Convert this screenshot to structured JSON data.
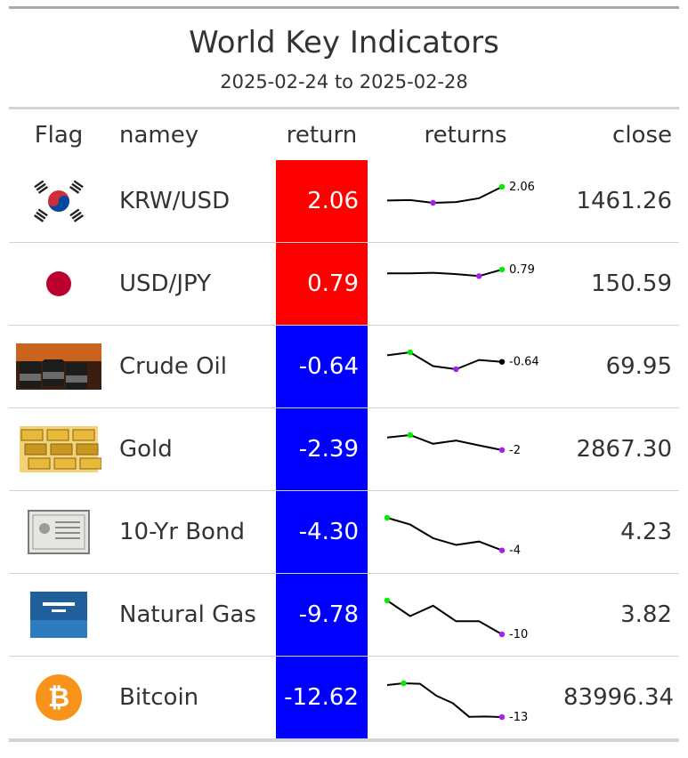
{
  "header": {
    "title": "World Key Indicators",
    "subtitle": "2025-02-24 to 2025-02-28"
  },
  "columns": {
    "flag": "Flag",
    "name": "namey",
    "return": "return",
    "returns": "returns",
    "close": "close"
  },
  "colors": {
    "positive": "#ff0000",
    "negative": "#0000ff",
    "spark_line": "#000000",
    "spark_min": "#a020f0",
    "spark_max": "#00ee00"
  },
  "rows": [
    {
      "icon": "south-korea-flag-icon",
      "name": "KRW/USD",
      "ret": "2.06",
      "close": "1461.26",
      "end_label": "2.06",
      "spark": [
        0.3,
        0.35,
        0.0,
        0.1,
        0.6,
        2.06
      ],
      "min_i": 2,
      "max_i": 5,
      "last": "max"
    },
    {
      "icon": "japan-flag-icon",
      "name": "USD/JPY",
      "ret": "0.79",
      "close": "150.59",
      "end_label": "0.79",
      "spark": [
        0.5,
        0.5,
        0.55,
        0.45,
        0.3,
        0.79
      ],
      "min_i": 4,
      "max_i": 5,
      "last": "max"
    },
    {
      "icon": "crude-oil-barrels-icon",
      "name": "Crude Oil",
      "ret": "-0.64",
      "close": "69.95",
      "end_label": "-0.64",
      "spark": [
        0.2,
        0.6,
        -1.2,
        -1.6,
        -0.4,
        -0.64
      ],
      "min_i": 3,
      "max_i": 1,
      "last": "plain"
    },
    {
      "icon": "gold-bars-icon",
      "name": "Gold",
      "ret": "-2.39",
      "close": "2867.30",
      "end_label": "-2",
      "spark": [
        -0.8,
        -0.5,
        -1.6,
        -1.2,
        -1.8,
        -2.39
      ],
      "min_i": 5,
      "max_i": 1,
      "last": "min"
    },
    {
      "icon": "bond-certificate-icon",
      "name": "10-Yr Bond",
      "ret": "-4.30",
      "close": "4.23",
      "end_label": "-4",
      "spark": [
        0.5,
        -0.5,
        -2.5,
        -3.5,
        -3.0,
        -4.3
      ],
      "min_i": 5,
      "max_i": 0,
      "last": "min"
    },
    {
      "icon": "natural-gas-icon",
      "name": "Natural Gas",
      "ret": "-9.78",
      "close": "3.82",
      "end_label": "-10",
      "spark": [
        0.0,
        -4.5,
        -1.5,
        -6.0,
        -6.0,
        -9.78
      ],
      "min_i": 5,
      "max_i": 0,
      "last": "min"
    },
    {
      "icon": "bitcoin-icon",
      "name": "Bitcoin",
      "ret": "-12.62",
      "close": "83996.34",
      "end_label": "-13",
      "spark": [
        0.3,
        1.0,
        0.8,
        -4.0,
        -7.0,
        -12.5,
        -12.4,
        -12.62
      ],
      "min_i": 7,
      "max_i": 1,
      "last": "min"
    }
  ]
}
